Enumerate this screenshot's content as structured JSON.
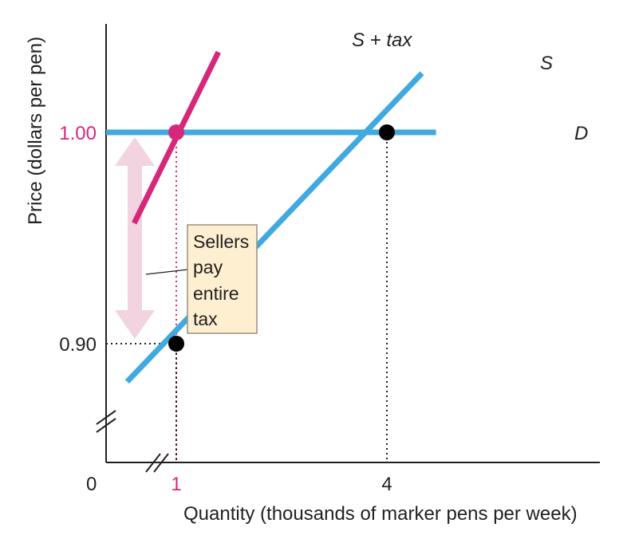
{
  "chart_data": {
    "type": "line",
    "title": "",
    "xlabel": "Quantity (thousands of marker pens per week)",
    "ylabel": "Price (dollars per pen)",
    "axis_breaks": true,
    "x_origin_label": "0",
    "x_ticks": [
      {
        "value": 1,
        "label": "1",
        "color": "#d6287a"
      },
      {
        "value": 4,
        "label": "4",
        "color": "#231f20"
      }
    ],
    "y_ticks": [
      {
        "value": 1.0,
        "label": "1.00",
        "color": "#d6287a"
      },
      {
        "value": 0.9,
        "label": "0.90",
        "color": "#231f20"
      }
    ],
    "series": [
      {
        "name": "D",
        "color": "#3fa9e0",
        "x": [
          0,
          4.7
        ],
        "y": [
          1.0,
          1.0
        ]
      },
      {
        "name": "S",
        "color": "#3fa9e0",
        "x": [
          0.3,
          4.5
        ],
        "y": [
          0.882,
          1.028
        ]
      },
      {
        "name": "S + tax",
        "color": "#d6287a",
        "x": [
          0.4,
          1.6
        ],
        "y": [
          0.957,
          1.038
        ]
      }
    ],
    "points": [
      {
        "x": 1,
        "y": 1.0,
        "color": "#d6287a"
      },
      {
        "x": 4,
        "y": 1.0,
        "color": "#000000"
      },
      {
        "x": 1,
        "y": 0.9,
        "color": "#000000"
      }
    ],
    "annotation": {
      "lines": [
        "Sellers",
        "pay",
        "entire",
        "tax"
      ],
      "arrow_from": 1.0,
      "arrow_to": 0.9,
      "arrow_color": "#f2d3e0",
      "box_fill": "#fdefd0",
      "box_border": "#9c8f7a"
    }
  }
}
